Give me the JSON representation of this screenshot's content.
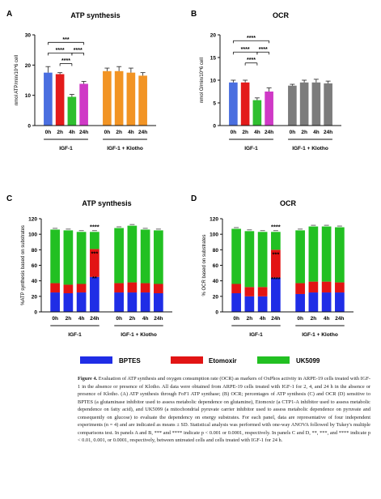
{
  "colors": {
    "ATP_control": "#4a6fe0",
    "ATP_2h": "#e31b1b",
    "ATP_4h": "#2fbf2f",
    "ATP_24h": "#cf39c6",
    "ATP_klotho": "#f29424",
    "OCR_control": "#4a6fe0",
    "OCR_2h": "#e31b1b",
    "OCR_4h": "#2fbf2f",
    "OCR_24h": "#cf39c6",
    "OCR_klotho": "#7c7c7c",
    "BPTES": "#1f2de6",
    "Etomoxir": "#e21414",
    "UK5099": "#22c022"
  },
  "panels": {
    "A": {
      "letter": "A"
    },
    "B": {
      "letter": "B"
    },
    "C": {
      "letter": "C"
    },
    "D": {
      "letter": "D"
    }
  },
  "legend": {
    "bptes": "BPTES",
    "etomoxir": "Etomoxir",
    "uk5099": "UK5099"
  },
  "caption": {
    "label": "Figure 4.",
    "text": "Evaluation of ATP synthesis and oxygen consumption rate (OCR) as markers of OxPhos activity in ARPE-19 cells treated with IGF-1 in the absence or presence of Klotho. All data were obtained from ARPE-19 cells treated with IGF-1 for 2, 4, and 24 h in the absence or presence of Klotho. (A) ATP synthesis through FoF1 ATP synthase; (B) OCR; percentages of ATP synthesis (C) and OCR (D) sensitive to BPTES (a glutaminase inhibitor used to assess metabolic dependence on glutamine), Etomoxir (a CTP1-A inhibitor used to assess metabolic dependence on fatty acid), and UK5099 (a mitochondrial pyruvate carrier inhibitor used to assess metabolic dependence on pyruvate and consequently on glucose) to evaluate the dependency on energy substrates. For each panel, data are representative of four independent experiments (n = 4) and are indicated as means ± SD. Statistical analysis was performed with one-way ANOVA followed by Tukey's multiple comparisons test. In panels A and B, *** and **** indicate p < 0.001 or 0.0001, respectively. In panels C and D, **, ***, and **** indicate p < 0.01, 0.001, or 0.0001, respectively, between untreated cells and cells treated with IGF-1 for 24 h."
  },
  "chart_data": [
    {
      "panel": "A",
      "type": "bar",
      "title": "ATP synthesis",
      "ylabel": "nmol ATP/min/10^6 cell",
      "ylim": [
        0,
        30
      ],
      "yticks": [
        0,
        10,
        20,
        30
      ],
      "categories": [
        "0h",
        "2h",
        "4h",
        "24h",
        "0h",
        "2h",
        "4h",
        "24h"
      ],
      "groups": [
        "IGF-1",
        "IGF-1 + Klotho"
      ],
      "values": [
        17.5,
        17.0,
        9.5,
        13.8,
        18.0,
        18.0,
        17.5,
        16.5
      ],
      "errors": [
        2.0,
        0.5,
        0.8,
        0.8,
        1.0,
        1.5,
        1.5,
        1.0
      ],
      "colors": [
        "ATP_control",
        "ATP_2h",
        "ATP_4h",
        "ATP_24h",
        "ATP_klotho",
        "ATP_klotho",
        "ATP_klotho",
        "ATP_klotho"
      ],
      "significance": [
        {
          "from": 0,
          "to": 3,
          "label": "***",
          "level": 27.5
        },
        {
          "from": 0,
          "to": 2,
          "label": "****",
          "level": 24.0
        },
        {
          "from": 2,
          "to": 3,
          "label": "****",
          "level": 24.0
        },
        {
          "from": 1,
          "to": 2,
          "label": "****",
          "level": 20.5
        }
      ]
    },
    {
      "panel": "B",
      "type": "bar",
      "title": "OCR",
      "ylabel": "nmol O/min/10^6 cell",
      "ylim": [
        0,
        20
      ],
      "yticks": [
        0,
        5,
        10,
        15,
        20
      ],
      "categories": [
        "0h",
        "2h",
        "4h",
        "24h",
        "0h",
        "2h",
        "4h",
        "24h"
      ],
      "groups": [
        "IGF-1",
        "IGF-1 + Klotho"
      ],
      "values": [
        9.5,
        9.5,
        5.6,
        7.5,
        8.8,
        9.5,
        9.5,
        9.3
      ],
      "errors": [
        0.5,
        0.5,
        0.5,
        0.8,
        0.3,
        0.5,
        0.7,
        0.5
      ],
      "colors": [
        "OCR_control",
        "OCR_2h",
        "OCR_4h",
        "OCR_24h",
        "OCR_klotho",
        "OCR_klotho",
        "OCR_klotho",
        "OCR_klotho"
      ],
      "significance": [
        {
          "from": 0,
          "to": 3,
          "label": "****",
          "level": 18.7
        },
        {
          "from": 0,
          "to": 2,
          "label": "****",
          "level": 16.2
        },
        {
          "from": 2,
          "to": 3,
          "label": "****",
          "level": 16.2
        },
        {
          "from": 1,
          "to": 2,
          "label": "****",
          "level": 13.8
        }
      ]
    },
    {
      "panel": "C",
      "type": "bar",
      "stacked": true,
      "title": "ATP synthesis",
      "ylabel": "%ATP synthesis based on substrates",
      "ylim": [
        0,
        120
      ],
      "yticks": [
        0,
        20,
        40,
        60,
        80,
        100,
        120
      ],
      "categories": [
        "0h",
        "2h",
        "4h",
        "24h",
        "0h",
        "2h",
        "4h",
        "24h"
      ],
      "groups": [
        "IGF-1",
        "IGF-1 + Klotho"
      ],
      "series": [
        {
          "name": "BPTES",
          "color": "BPTES",
          "values": [
            25,
            24,
            25,
            45,
            25,
            25,
            25,
            24
          ]
        },
        {
          "name": "Etomoxir",
          "color": "Etomoxir",
          "values": [
            12,
            11,
            11,
            36,
            12,
            13,
            12,
            12
          ]
        },
        {
          "name": "UK5099",
          "color": "UK5099",
          "values": [
            69,
            70,
            67,
            22,
            71,
            73,
            69,
            69
          ]
        }
      ],
      "annotations": [
        {
          "index": 3,
          "labels": [
            "****",
            "***",
            "**"
          ]
        }
      ]
    },
    {
      "panel": "D",
      "type": "bar",
      "stacked": true,
      "title": "OCR",
      "ylabel": "% OCR based on substrates",
      "ylim": [
        0,
        120
      ],
      "yticks": [
        0,
        20,
        40,
        60,
        80,
        100,
        120
      ],
      "categories": [
        "0h",
        "2h",
        "4h",
        "24h",
        "0h",
        "2h",
        "4h",
        "24h"
      ],
      "groups": [
        "IGF-1",
        "IGF-1 + Klotho"
      ],
      "series": [
        {
          "name": "BPTES",
          "color": "BPTES",
          "values": [
            24,
            20,
            20,
            44,
            23,
            25,
            25,
            25
          ]
        },
        {
          "name": "Etomoxir",
          "color": "Etomoxir",
          "values": [
            12,
            12,
            12,
            36,
            14,
            14,
            14,
            13
          ]
        },
        {
          "name": "UK5099",
          "color": "UK5099",
          "values": [
            71,
            72,
            71,
            23,
            68,
            71,
            71,
            71
          ]
        }
      ],
      "annotations": [
        {
          "index": 3,
          "labels": [
            "****",
            "***",
            "****"
          ]
        }
      ]
    }
  ]
}
